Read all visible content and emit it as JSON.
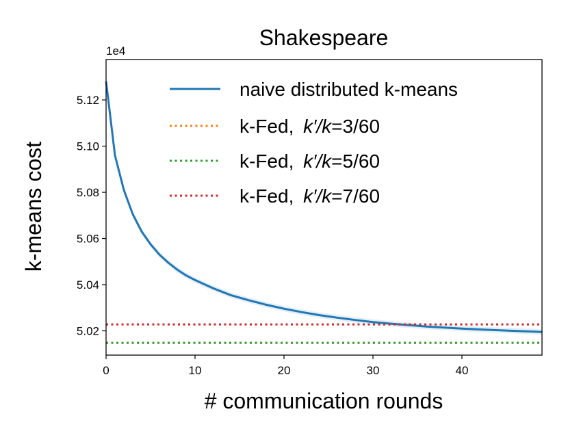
{
  "chart_data": {
    "type": "line",
    "title": "Shakespeare",
    "xlabel": "# communication rounds",
    "ylabel": "k-means cost",
    "y_offset_label": "1e4",
    "y_scale_factor": 10000,
    "xlim": [
      0,
      49
    ],
    "ylim": [
      5.0095,
      5.1375
    ],
    "x_ticks": [
      0,
      10,
      20,
      30,
      40
    ],
    "y_ticks": [
      5.02,
      5.04,
      5.06,
      5.08,
      5.1,
      5.12
    ],
    "y_tick_labels": [
      "5.02",
      "5.04",
      "5.06",
      "5.08",
      "5.10",
      "5.12"
    ],
    "grid": false,
    "legend_position": "top-right",
    "series": [
      {
        "name": "naive distributed k-means",
        "style": "solid",
        "color": "#1f77b4",
        "x": [
          0,
          1,
          2,
          3,
          4,
          5,
          6,
          7,
          8,
          9,
          10,
          12,
          14,
          16,
          18,
          20,
          22,
          24,
          26,
          28,
          30,
          32,
          34,
          36,
          38,
          40,
          42,
          44,
          46,
          48,
          49
        ],
        "y": [
          5.128,
          5.096,
          5.081,
          5.0705,
          5.063,
          5.0575,
          5.053,
          5.0495,
          5.0465,
          5.044,
          5.042,
          5.0385,
          5.0355,
          5.0333,
          5.0313,
          5.0296,
          5.0281,
          5.0268,
          5.0257,
          5.0247,
          5.0238,
          5.0231,
          5.0225,
          5.0219,
          5.0214,
          5.021,
          5.0206,
          5.0203,
          5.02,
          5.0197,
          5.0195
        ]
      },
      {
        "name_prefix": "k-Fed, ",
        "name_k": "k′/k",
        "name_suffix": "=3/60",
        "style": "dotted",
        "color": "#ff7f0e",
        "y_constant": 5.0148
      },
      {
        "name_prefix": "k-Fed, ",
        "name_k": "k′/k",
        "name_suffix": "=5/60",
        "style": "dotted",
        "color": "#2ca02c",
        "y_constant": 5.0148
      },
      {
        "name_prefix": "k-Fed, ",
        "name_k": "k′/k",
        "name_suffix": "=7/60",
        "style": "dotted",
        "color": "#d62728",
        "y_constant": 5.0228
      }
    ]
  }
}
